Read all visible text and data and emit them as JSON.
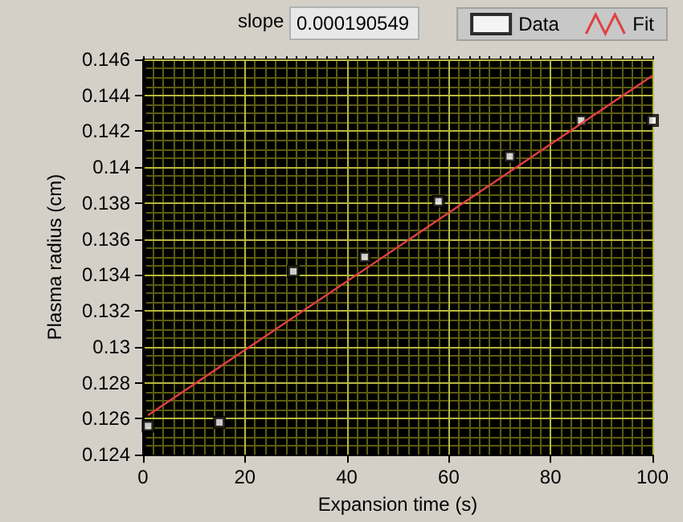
{
  "chart_data": {
    "type": "scatter",
    "xlabel": "Expansion time (s)",
    "ylabel": "Plasma radius (cm)",
    "annotations": [
      "slope",
      "0.000190549"
    ],
    "series": [
      {
        "name": "Data",
        "type": "scatter",
        "color": "#ffffff",
        "marker": "square",
        "x": [
          1,
          15,
          29.5,
          43.5,
          58,
          72,
          86,
          100
        ],
        "values": [
          0.1256,
          0.1258,
          0.1342,
          0.135,
          0.1381,
          0.1406,
          0.1426,
          0.1426
        ]
      },
      {
        "name": "Fit",
        "type": "line",
        "color": "#e04040",
        "marker": "none",
        "x": [
          1,
          100
        ],
        "values": [
          0.1262,
          0.1451
        ]
      }
    ],
    "xlim": [
      0,
      100
    ],
    "xticks": [
      0,
      {
        "value": 2,
        "label": null
      },
      {
        "value": 4,
        "label": null
      },
      {
        "value": 6,
        "label": null
      },
      {
        "value": 8,
        "label": null
      },
      {
        "value": 10,
        "label": null
      },
      {
        "value": 12,
        "label": null
      },
      {
        "value": 14,
        "label": null
      },
      {
        "value": 16,
        "label": null
      },
      {
        "value": 18,
        "label": null
      },
      20,
      {
        "value": 22,
        "label": null
      },
      {
        "value": 24,
        "label": null
      },
      {
        "value": 26,
        "label": null
      },
      {
        "value": 28,
        "label": null
      },
      {
        "value": 30,
        "label": null
      },
      {
        "value": 32,
        "label": null
      },
      {
        "value": 34,
        "label": null
      },
      {
        "value": 36,
        "label": null
      },
      {
        "value": 38,
        "label": null
      },
      40,
      {
        "value": 42,
        "label": null
      },
      {
        "value": 44,
        "label": null
      },
      {
        "value": 46,
        "label": null
      },
      {
        "value": 48,
        "label": null
      },
      {
        "value": 50,
        "label": null
      },
      {
        "value": 52,
        "label": null
      },
      {
        "value": 54,
        "label": null
      },
      {
        "value": 56,
        "label": null
      },
      {
        "value": 58,
        "label": null
      },
      60,
      {
        "value": 62,
        "label": null
      },
      {
        "value": 64,
        "label": null
      },
      {
        "value": 66,
        "label": null
      },
      {
        "value": 68,
        "label": null
      },
      {
        "value": 70,
        "label": null
      },
      {
        "value": 72,
        "label": null
      },
      {
        "value": 74,
        "label": null
      },
      {
        "value": 76,
        "label": null
      },
      {
        "value": 78,
        "label": null
      },
      80,
      {
        "value": 82,
        "label": null
      },
      {
        "value": 84,
        "label": null
      },
      {
        "value": 86,
        "label": null
      },
      {
        "value": 88,
        "label": null
      },
      {
        "value": 90,
        "label": null
      },
      {
        "value": 92,
        "label": null
      },
      {
        "value": 94,
        "label": null
      },
      {
        "value": 96,
        "label": null
      },
      {
        "value": 98,
        "label": null
      },
      100
    ],
    "ylim": [
      0.124,
      0.146
    ],
    "yticks": [
      0.124,
      {
        "value": 0.1245,
        "label": null
      },
      {
        "value": 0.125,
        "label": null
      },
      {
        "value": 0.1255,
        "label": null
      },
      0.126,
      {
        "value": 0.1265,
        "label": null
      },
      {
        "value": 0.127,
        "label": null
      },
      {
        "value": 0.1275,
        "label": null
      },
      0.128,
      {
        "value": 0.1285,
        "label": null
      },
      {
        "value": 0.129,
        "label": null
      },
      {
        "value": 0.1295,
        "label": null
      },
      0.13,
      {
        "value": 0.1305,
        "label": null
      },
      {
        "value": 0.131,
        "label": null
      },
      {
        "value": 0.1315,
        "label": null
      },
      0.132,
      {
        "value": 0.1325,
        "label": null
      },
      {
        "value": 0.133,
        "label": null
      },
      {
        "value": 0.1335,
        "label": null
      },
      0.134,
      {
        "value": 0.1345,
        "label": null
      },
      {
        "value": 0.135,
        "label": null
      },
      {
        "value": 0.1355,
        "label": null
      },
      0.136,
      {
        "value": 0.1365,
        "label": null
      },
      {
        "value": 0.137,
        "label": null
      },
      {
        "value": 0.1375,
        "label": null
      },
      0.138,
      {
        "value": 0.1385,
        "label": null
      },
      {
        "value": 0.139,
        "label": null
      },
      {
        "value": 0.1395,
        "label": null
      },
      0.14,
      {
        "value": 0.1405,
        "label": null
      },
      {
        "value": 0.141,
        "label": null
      },
      {
        "value": 0.1415,
        "label": null
      },
      0.142,
      {
        "value": 0.1425,
        "label": null
      },
      {
        "value": 0.143,
        "label": null
      },
      {
        "value": 0.1435,
        "label": null
      },
      0.144,
      {
        "value": 0.1445,
        "label": null
      },
      {
        "value": 0.145,
        "label": null
      },
      {
        "value": 0.1455,
        "label": null
      },
      0.146
    ],
    "grid": true,
    "legend": "top right"
  }
}
